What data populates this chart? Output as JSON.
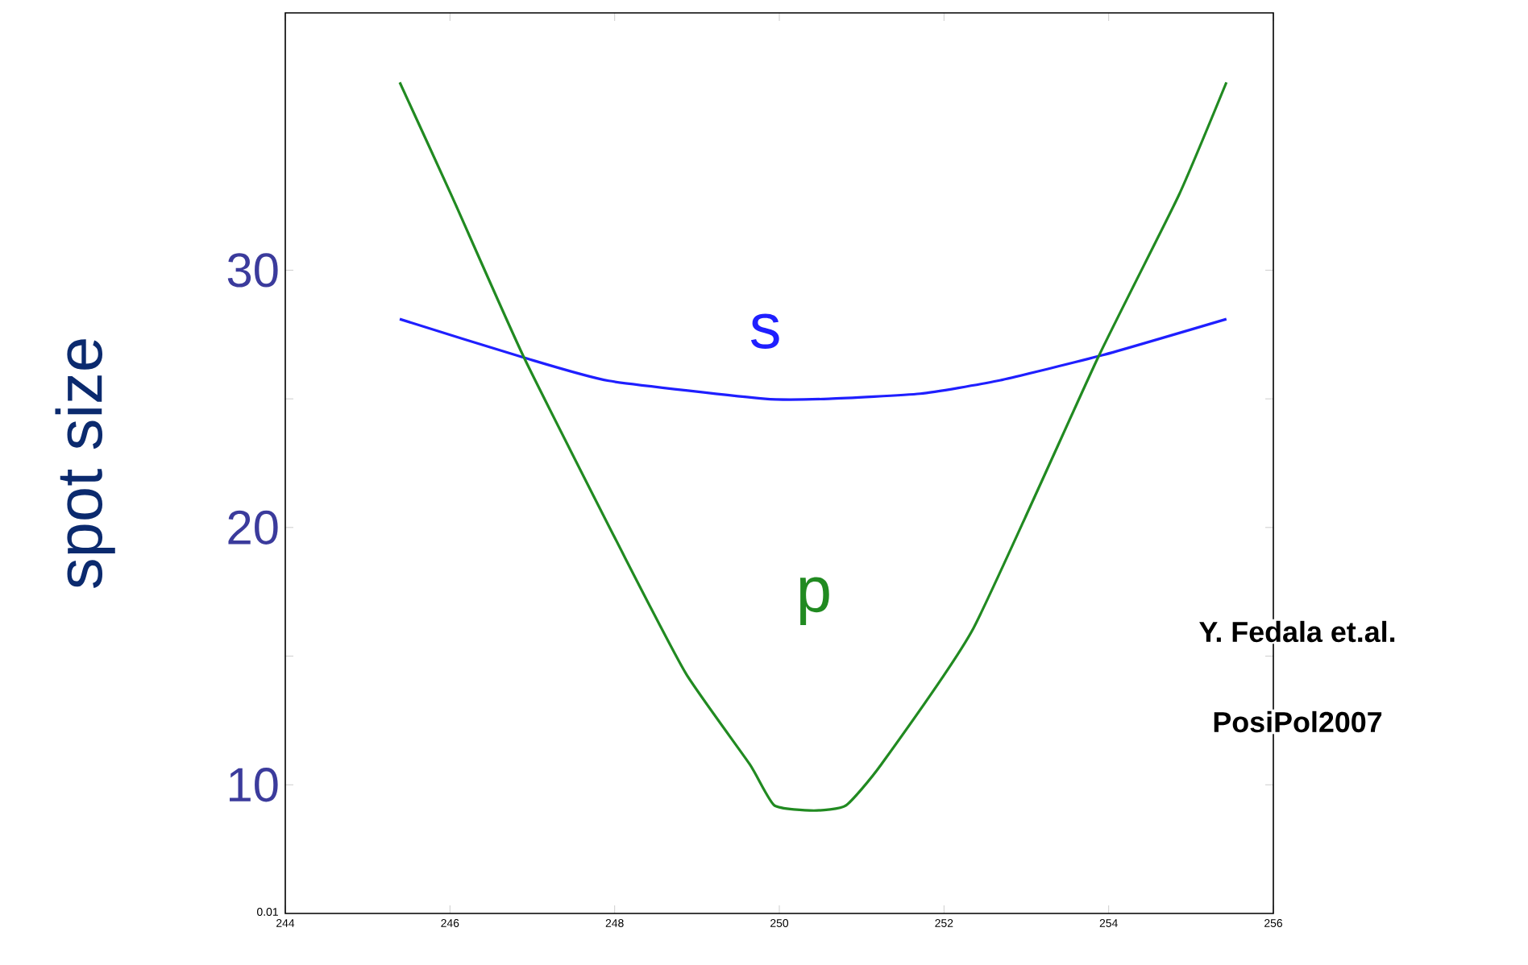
{
  "chart_data": {
    "type": "line",
    "ylabel": "spot size",
    "xlim": [
      244,
      256
    ],
    "ylim": [
      5,
      40
    ],
    "xticks": [
      244,
      246,
      248,
      250,
      252,
      254,
      256
    ],
    "yticks": [
      10,
      20,
      30
    ],
    "grid": false,
    "marker": "none",
    "line_style": "solid",
    "series": [
      {
        "name": "s",
        "color": "#1f1fff",
        "x": [
          245.39,
          246.9,
          247.93,
          249.83,
          250.6,
          251.71,
          252.65,
          253.93,
          255.43
        ],
        "values": [
          28.1,
          26.6,
          25.7,
          25.0,
          25.0,
          25.2,
          25.7,
          26.7,
          28.1
        ]
      },
      {
        "name": "p",
        "color": "#218a21",
        "x": [
          245.39,
          246.02,
          246.9,
          248.13,
          248.87,
          249.64,
          249.94,
          250.42,
          250.81,
          251.24,
          252.36,
          253.87,
          254.85,
          255.43
        ],
        "values": [
          37.3,
          32.9,
          26.6,
          18.8,
          14.3,
          10.8,
          9.2,
          9.0,
          9.2,
          10.8,
          16.1,
          26.6,
          32.9,
          37.3
        ]
      }
    ],
    "annotations": [
      "Y. Fedala et.al.",
      "PosiPol2007",
      "0.01"
    ]
  }
}
